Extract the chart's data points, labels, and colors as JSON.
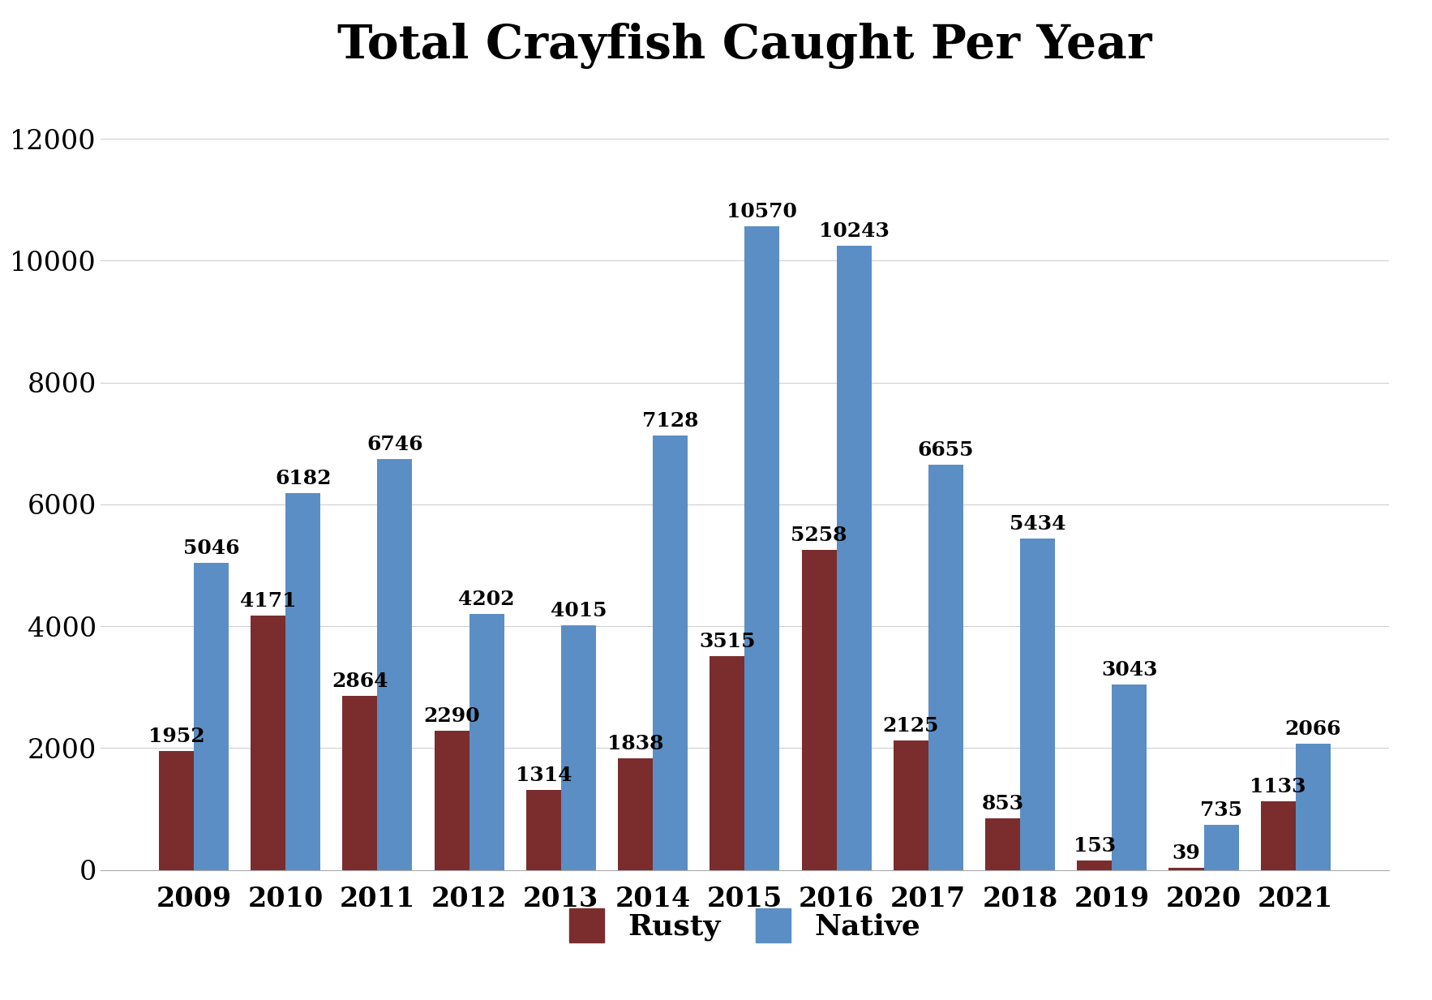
{
  "title": "Total Crayfish Caught Per Year",
  "years": [
    2009,
    2010,
    2011,
    2012,
    2013,
    2014,
    2015,
    2016,
    2017,
    2018,
    2019,
    2020,
    2021
  ],
  "rusty": [
    1952,
    4171,
    2864,
    2290,
    1314,
    1838,
    3515,
    5258,
    2125,
    853,
    153,
    39,
    1133
  ],
  "native": [
    5046,
    6182,
    6746,
    4202,
    4015,
    7128,
    10570,
    10243,
    6655,
    5434,
    3043,
    735,
    2066
  ],
  "rusty_color": "#7B2D2D",
  "native_color": "#5B8EC4",
  "background_color": "#FFFFFF",
  "ylim": [
    0,
    12800
  ],
  "yticks": [
    0,
    2000,
    4000,
    6000,
    8000,
    10000,
    12000
  ],
  "title_fontsize": 42,
  "tick_fontsize": 24,
  "bar_label_fontsize": 18,
  "legend_fontsize": 26,
  "bar_width": 0.38
}
